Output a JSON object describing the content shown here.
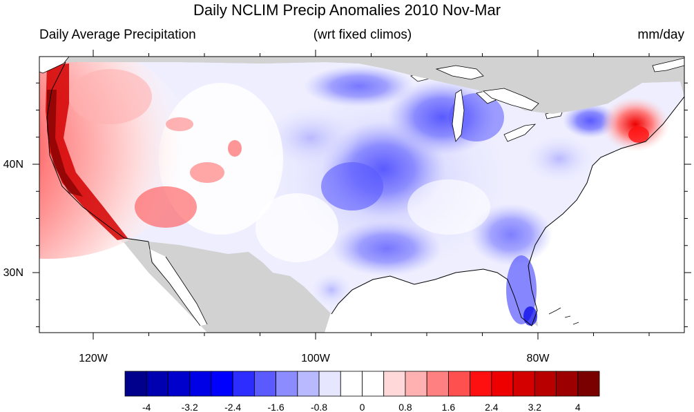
{
  "header": {
    "title": "Daily NCLIM Precip Anomalies 2010 Nov-Mar",
    "left": "Daily Average Precipitation",
    "center": "(wrt fixed climos)",
    "right": "mm/day"
  },
  "axes": {
    "x_ticks": [
      "120W",
      "100W",
      "80W"
    ],
    "y_ticks": [
      "40N",
      "30N"
    ]
  },
  "colorbar": {
    "colors": [
      "#00008c",
      "#0000b0",
      "#0000cc",
      "#0000e6",
      "#0000ff",
      "#2d2dff",
      "#5a5aff",
      "#8c8cff",
      "#b9b9ff",
      "#e6e6ff",
      "#ffffff",
      "#ffffff",
      "#ffd9d9",
      "#ffb0b0",
      "#ff8080",
      "#ff5050",
      "#ff1010",
      "#ee0000",
      "#d40000",
      "#b80000",
      "#9c0000",
      "#7a0000"
    ],
    "labels": [
      "-4",
      "-3.2",
      "-2.4",
      "-1.6",
      "-0.8",
      "0",
      "0.8",
      "1.6",
      "2.4",
      "3.2",
      "4"
    ]
  },
  "map": {
    "land_outside_color": "#d2d2d2",
    "ocean_color": "#ffffff"
  }
}
